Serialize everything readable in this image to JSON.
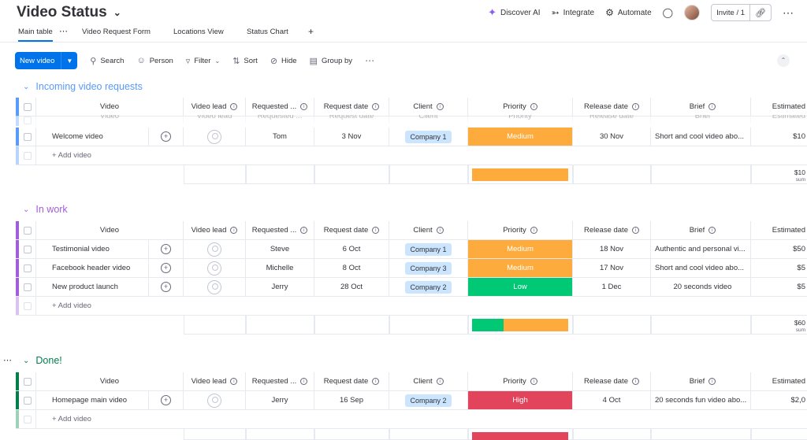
{
  "board": {
    "title": "Video Status"
  },
  "top_actions": {
    "discover_ai": "Discover AI",
    "integrate": "Integrate",
    "automate": "Automate",
    "invite": "Invite / 1"
  },
  "tabs": [
    "Main table",
    "Video Request Form",
    "Locations View",
    "Status Chart"
  ],
  "toolbar": {
    "new_item": "New video",
    "search": "Search",
    "person": "Person",
    "filter": "Filter",
    "sort": "Sort",
    "hide": "Hide",
    "group_by": "Group by"
  },
  "columns": {
    "video": "Video",
    "lead": "Video lead",
    "requested": "Requested ...",
    "request_date": "Request date",
    "client": "Client",
    "priority": "Priority",
    "release_date": "Release date",
    "brief": "Brief",
    "estimated": "Estimated"
  },
  "colors": {
    "accent": "#0073ea",
    "medium": "#fdab3d",
    "low": "#00c875",
    "high": "#e2445c",
    "group_incoming": "#579bfc",
    "group_work": "#a25ddc",
    "group_done": "#037f4c"
  },
  "groups": [
    {
      "title": "Incoming video requests",
      "add_label": "+ Add video",
      "ghost_header": {
        "video": "Video",
        "lead": "Video lead",
        "requested": "Requested ...",
        "request_date": "Request date",
        "client": "Client",
        "priority": "Priority",
        "release_date": "Release date",
        "brief": "Brief",
        "estimated": "Estimated"
      },
      "rows": [
        {
          "video": "Welcome video",
          "requested": "Tom",
          "request_date": "3 Nov",
          "client": "Company 1",
          "priority": "Medium",
          "release_date": "30 Nov",
          "brief": "Short and cool video abo...",
          "estimated": "$10"
        }
      ],
      "summary": {
        "estimated": "$10",
        "unit": "sum"
      }
    },
    {
      "title": "In work",
      "add_label": "+ Add video",
      "rows": [
        {
          "video": "Testimonial video",
          "requested": "Steve",
          "request_date": "6 Oct",
          "client": "Company 1",
          "priority": "Medium",
          "release_date": "18 Nov",
          "brief": "Authentic and personal vi...",
          "estimated": "$50"
        },
        {
          "video": "Facebook header video",
          "requested": "Michelle",
          "request_date": "8 Oct",
          "client": "Company 3",
          "priority": "Medium",
          "release_date": "17 Nov",
          "brief": "Short and cool video abo...",
          "estimated": "$5"
        },
        {
          "video": "New product launch",
          "requested": "Jerry",
          "request_date": "28 Oct",
          "client": "Company 2",
          "priority": "Low",
          "release_date": "1 Dec",
          "brief": "20 seconds video",
          "estimated": "$5"
        }
      ],
      "summary": {
        "estimated": "$60",
        "unit": "sum"
      }
    },
    {
      "title": "Done!",
      "add_label": "+ Add video",
      "rows": [
        {
          "video": "Homepage main video",
          "requested": "Jerry",
          "request_date": "16 Sep",
          "client": "Company 2",
          "priority": "High",
          "release_date": "4 Oct",
          "brief": "20 seconds fun video abo...",
          "estimated": "$2,0"
        }
      ]
    }
  ]
}
